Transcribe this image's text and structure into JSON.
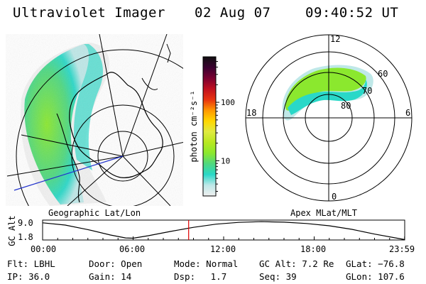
{
  "header": {
    "title": "Ultraviolet Imager",
    "date": "02 Aug 07",
    "time": "09:40:52 UT"
  },
  "left_panel": {
    "label": "Geographic Lat/Lon"
  },
  "right_panel": {
    "label": "Apex MLat/MLT",
    "mlt_labels": [
      "12",
      "18",
      "6",
      "0"
    ],
    "mlat_labels": [
      "80",
      "70",
      "60"
    ]
  },
  "colorbar": {
    "unit": "photon cm⁻²s⁻¹",
    "ticks": [
      {
        "label": "100",
        "value": 100
      },
      {
        "label": "10",
        "value": 10
      }
    ],
    "colors": [
      "#f0f0f0",
      "#bfe8e8",
      "#29d8c8",
      "#4fd87f",
      "#8be82e",
      "#b8e820",
      "#e0ea40",
      "#ffd700",
      "#ff9800",
      "#e8330f",
      "#c0101f",
      "#7a0030",
      "#3a0030",
      "#101010"
    ]
  },
  "altitude_plot": {
    "ylabel": "GC Alt",
    "yticks": [
      "9.0",
      "1.8"
    ],
    "xticks": [
      "00:00",
      "06:00",
      "12:00",
      "18:00",
      "23:59"
    ]
  },
  "chart_data": {
    "type": "line",
    "title": "",
    "xlabel": "",
    "ylabel": "GC Alt",
    "xlim": [
      0,
      24
    ],
    "ylim": [
      1.0,
      9.8
    ],
    "x": [
      0,
      1.5,
      3,
      4.5,
      5.5,
      6.0,
      7,
      8.5,
      10,
      11.5,
      13,
      14.5,
      16,
      17.5,
      19,
      20.5,
      22,
      23.99
    ],
    "series": [
      {
        "values": [
          8.6,
          7.6,
          5.6,
          3.2,
          1.9,
          1.8,
          2.9,
          4.8,
          6.6,
          8.0,
          8.8,
          9.1,
          8.9,
          8.3,
          7.3,
          5.7,
          3.6,
          1.2
        ]
      }
    ],
    "current_time": 9.68
  },
  "status": {
    "flt": {
      "label": "Flt:",
      "value": "LBHL"
    },
    "ip": {
      "label": "IP:",
      "value": "36.0"
    },
    "door": {
      "label": "Door:",
      "value": "Open"
    },
    "gain": {
      "label": "Gain:",
      "value": "14"
    },
    "mode": {
      "label": "Mode:",
      "value": "Normal"
    },
    "dsp": {
      "label": "Dsp:",
      "value": "1.7"
    },
    "gcalt": {
      "label": "GC Alt:",
      "value": "7.2 Re"
    },
    "seq": {
      "label": "Seq:",
      "value": "39"
    },
    "glat": {
      "label": "GLat:",
      "value": "−76.8"
    },
    "glon": {
      "label": "GLon:",
      "value": "107.6"
    }
  }
}
